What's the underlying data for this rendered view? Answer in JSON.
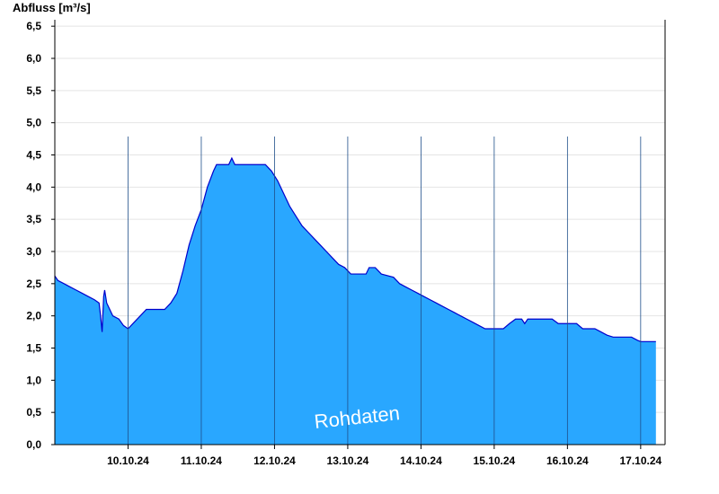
{
  "chart_data": {
    "type": "area",
    "ylabel": "Abfluss [m³/s]",
    "watermark": "Rohdaten",
    "ylim": [
      0,
      6.6
    ],
    "y_ticks": [
      "0,0",
      "0,5",
      "1,0",
      "1,5",
      "2,0",
      "2,5",
      "3,0",
      "3,5",
      "4,0",
      "4,5",
      "5,0",
      "5,5",
      "6,0",
      "6,5"
    ],
    "x_range": [
      "2024-10-09T12:00",
      "2024-10-17T20:00"
    ],
    "x_ticks": [
      {
        "label": "10.10.24",
        "at": "2024-10-10T00:00"
      },
      {
        "label": "11.10.24",
        "at": "2024-10-11T00:00"
      },
      {
        "label": "12.10.24",
        "at": "2024-10-12T00:00"
      },
      {
        "label": "13.10.24",
        "at": "2024-10-13T00:00"
      },
      {
        "label": "14.10.24",
        "at": "2024-10-14T00:00"
      },
      {
        "label": "15.10.24",
        "at": "2024-10-15T00:00"
      },
      {
        "label": "16.10.24",
        "at": "2024-10-16T00:00"
      },
      {
        "label": "17.10.24",
        "at": "2024-10-17T00:00"
      }
    ],
    "day_lines": [
      "2024-10-10T12:00",
      "2024-10-11T12:00",
      "2024-10-12T12:00",
      "2024-10-13T12:00",
      "2024-10-14T12:00",
      "2024-10-15T12:00",
      "2024-10-16T12:00",
      "2024-10-17T12:00"
    ],
    "grid": true,
    "fill_color": "#29a7ff",
    "line_color": "#0000cc",
    "series": [
      {
        "values": [
          [
            "2024-10-09T12:00",
            2.62
          ],
          [
            "2024-10-09T13:00",
            2.55
          ],
          [
            "2024-10-09T15:00",
            2.5
          ],
          [
            "2024-10-09T17:00",
            2.45
          ],
          [
            "2024-10-09T19:00",
            2.4
          ],
          [
            "2024-10-09T21:00",
            2.35
          ],
          [
            "2024-10-09T23:00",
            2.3
          ],
          [
            "2024-10-10T01:00",
            2.25
          ],
          [
            "2024-10-10T02:30",
            2.2
          ],
          [
            "2024-10-10T03:00",
            2.0
          ],
          [
            "2024-10-10T03:30",
            1.75
          ],
          [
            "2024-10-10T04:00",
            2.3
          ],
          [
            "2024-10-10T04:20",
            2.4
          ],
          [
            "2024-10-10T05:00",
            2.2
          ],
          [
            "2024-10-10T06:00",
            2.1
          ],
          [
            "2024-10-10T07:00",
            2.0
          ],
          [
            "2024-10-10T09:00",
            1.95
          ],
          [
            "2024-10-10T10:30",
            1.85
          ],
          [
            "2024-10-10T12:00",
            1.8
          ],
          [
            "2024-10-10T14:00",
            1.9
          ],
          [
            "2024-10-10T16:00",
            2.0
          ],
          [
            "2024-10-10T18:00",
            2.1
          ],
          [
            "2024-10-11T00:00",
            2.1
          ],
          [
            "2024-10-11T02:00",
            2.2
          ],
          [
            "2024-10-11T04:00",
            2.35
          ],
          [
            "2024-10-11T06:00",
            2.7
          ],
          [
            "2024-10-11T08:00",
            3.1
          ],
          [
            "2024-10-11T10:00",
            3.4
          ],
          [
            "2024-10-11T12:00",
            3.65
          ],
          [
            "2024-10-11T14:00",
            4.0
          ],
          [
            "2024-10-11T16:00",
            4.25
          ],
          [
            "2024-10-11T17:00",
            4.35
          ],
          [
            "2024-10-11T21:00",
            4.35
          ],
          [
            "2024-10-11T22:00",
            4.45
          ],
          [
            "2024-10-11T23:00",
            4.35
          ],
          [
            "2024-10-12T09:00",
            4.35
          ],
          [
            "2024-10-12T11:00",
            4.25
          ],
          [
            "2024-10-12T13:00",
            4.1
          ],
          [
            "2024-10-12T15:00",
            3.9
          ],
          [
            "2024-10-12T17:00",
            3.7
          ],
          [
            "2024-10-12T19:00",
            3.55
          ],
          [
            "2024-10-12T21:00",
            3.4
          ],
          [
            "2024-10-12T23:00",
            3.3
          ],
          [
            "2024-10-13T01:00",
            3.2
          ],
          [
            "2024-10-13T03:00",
            3.1
          ],
          [
            "2024-10-13T05:00",
            3.0
          ],
          [
            "2024-10-13T07:00",
            2.9
          ],
          [
            "2024-10-13T09:00",
            2.8
          ],
          [
            "2024-10-13T11:00",
            2.75
          ],
          [
            "2024-10-13T13:00",
            2.65
          ],
          [
            "2024-10-13T18:00",
            2.65
          ],
          [
            "2024-10-13T19:00",
            2.75
          ],
          [
            "2024-10-13T21:00",
            2.75
          ],
          [
            "2024-10-13T23:00",
            2.65
          ],
          [
            "2024-10-14T03:00",
            2.6
          ],
          [
            "2024-10-14T05:00",
            2.5
          ],
          [
            "2024-10-14T07:00",
            2.45
          ],
          [
            "2024-10-14T09:00",
            2.4
          ],
          [
            "2024-10-14T11:00",
            2.35
          ],
          [
            "2024-10-14T13:00",
            2.3
          ],
          [
            "2024-10-14T15:00",
            2.25
          ],
          [
            "2024-10-14T17:00",
            2.2
          ],
          [
            "2024-10-14T19:00",
            2.15
          ],
          [
            "2024-10-14T21:00",
            2.1
          ],
          [
            "2024-10-14T23:00",
            2.05
          ],
          [
            "2024-10-15T01:00",
            2.0
          ],
          [
            "2024-10-15T03:00",
            1.95
          ],
          [
            "2024-10-15T05:00",
            1.9
          ],
          [
            "2024-10-15T07:00",
            1.85
          ],
          [
            "2024-10-15T09:00",
            1.8
          ],
          [
            "2024-10-15T15:00",
            1.8
          ],
          [
            "2024-10-15T17:00",
            1.88
          ],
          [
            "2024-10-15T19:00",
            1.95
          ],
          [
            "2024-10-15T21:00",
            1.95
          ],
          [
            "2024-10-15T22:00",
            1.88
          ],
          [
            "2024-10-15T23:00",
            1.95
          ],
          [
            "2024-10-16T07:00",
            1.95
          ],
          [
            "2024-10-16T09:00",
            1.88
          ],
          [
            "2024-10-16T15:00",
            1.88
          ],
          [
            "2024-10-16T17:00",
            1.8
          ],
          [
            "2024-10-16T21:00",
            1.8
          ],
          [
            "2024-10-16T23:00",
            1.75
          ],
          [
            "2024-10-17T01:00",
            1.7
          ],
          [
            "2024-10-17T03:00",
            1.67
          ],
          [
            "2024-10-17T09:00",
            1.67
          ],
          [
            "2024-10-17T11:00",
            1.62
          ],
          [
            "2024-10-17T12:00",
            1.6
          ],
          [
            "2024-10-17T17:00",
            1.6
          ]
        ]
      }
    ]
  }
}
